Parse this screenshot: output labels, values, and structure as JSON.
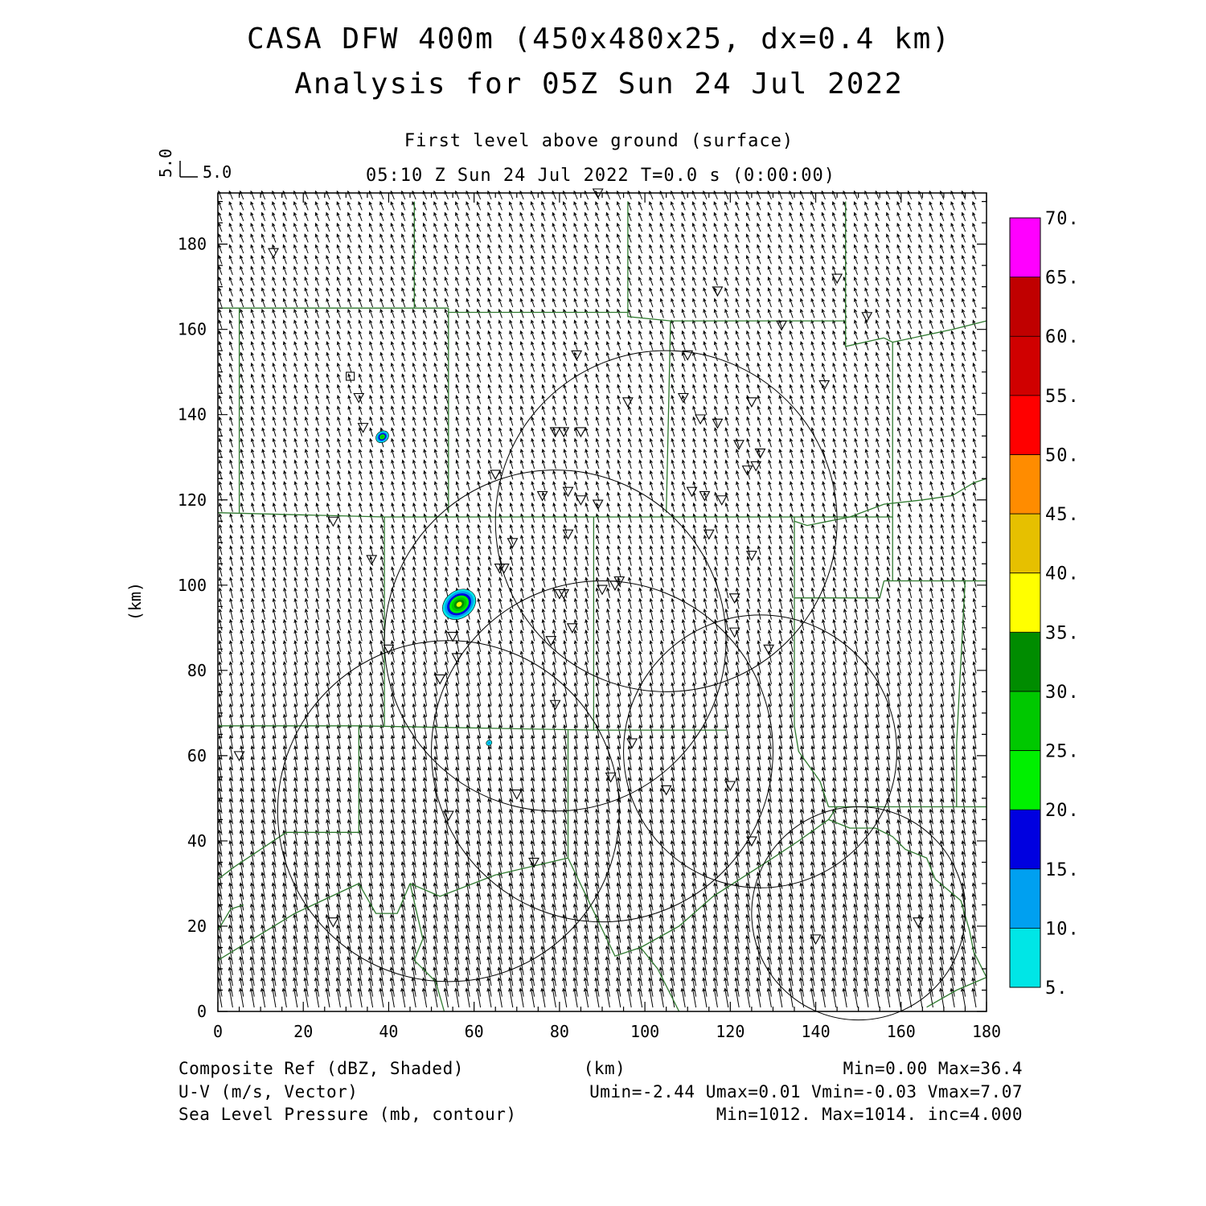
{
  "title": {
    "line1": "CASA DFW 400m (450x480x25, dx=0.4 km)",
    "line2": "Analysis for 05Z Sun 24 Jul 2022"
  },
  "subtitle": {
    "level": "First level above ground (surface)",
    "time": "05:10 Z Sun 24 Jul 2022   T=0.0 s (0:00:00)"
  },
  "vector_key": {
    "vertical": "5.0",
    "horizontal": "5.0"
  },
  "axes": {
    "ylabel": "(km)",
    "xlabel": "(km)",
    "x_ticks": [
      "0",
      "20",
      "40",
      "60",
      "80",
      "100",
      "120",
      "140",
      "160",
      "180"
    ],
    "y_ticks": [
      "0",
      "20",
      "40",
      "60",
      "80",
      "100",
      "120",
      "140",
      "160",
      "180"
    ]
  },
  "colorbar": {
    "labels": [
      "5.",
      "10.",
      "15.",
      "20.",
      "25.",
      "30.",
      "35.",
      "40.",
      "45.",
      "50.",
      "55.",
      "60.",
      "65.",
      "70."
    ],
    "colors": [
      "#00e6e6",
      "#00a0f0",
      "#0000e0",
      "#00f000",
      "#00c800",
      "#008c00",
      "#ffff00",
      "#e6c000",
      "#ff8c00",
      "#ff0000",
      "#d00000",
      "#c00000",
      "#ff00ff"
    ]
  },
  "footer": {
    "field1_name": "Composite Ref (dBZ, Shaded)",
    "field1_stats": "Min=0.00 Max=36.4",
    "field2_name": "U-V (m/s, Vector)",
    "field2_stats": "Umin=-2.44 Umax=0.01 Vmin=-0.03 Vmax=7.07",
    "field3_name": "Sea Level Pressure (mb, contour)",
    "field3_stats": "Min=1012. Max=1014. inc=4.000",
    "x_unit": "(km)"
  },
  "colors": {
    "boundary": "#2f7a2f",
    "axes": "#000000"
  },
  "radar_sites": [
    {
      "x": 105,
      "y": 115,
      "r": 40
    },
    {
      "x": 79,
      "y": 87,
      "r": 40
    },
    {
      "x": 90,
      "y": 61,
      "r": 40
    },
    {
      "x": 127,
      "y": 61,
      "r": 32
    },
    {
      "x": 54,
      "y": 47,
      "r": 40
    },
    {
      "x": 150,
      "y": 23,
      "r": 25
    }
  ],
  "stations": [
    [
      13,
      178
    ],
    [
      27,
      115
    ],
    [
      33,
      144
    ],
    [
      34,
      137
    ],
    [
      36,
      106
    ],
    [
      40,
      85
    ],
    [
      52,
      78
    ],
    [
      54,
      46
    ],
    [
      55,
      88
    ],
    [
      56,
      83
    ],
    [
      65,
      126
    ],
    [
      66,
      104
    ],
    [
      67,
      104
    ],
    [
      69,
      110
    ],
    [
      70,
      51
    ],
    [
      74,
      35
    ],
    [
      76,
      121
    ],
    [
      79,
      136
    ],
    [
      81,
      136
    ],
    [
      80,
      98
    ],
    [
      81,
      98
    ],
    [
      82,
      122
    ],
    [
      82,
      112
    ],
    [
      83,
      90
    ],
    [
      78,
      87
    ],
    [
      79,
      72
    ],
    [
      84,
      154
    ],
    [
      85,
      120
    ],
    [
      85,
      136
    ],
    [
      89,
      119
    ],
    [
      90,
      99
    ],
    [
      93,
      100
    ],
    [
      94,
      101
    ],
    [
      97,
      63
    ],
    [
      92,
      55
    ],
    [
      96,
      143
    ],
    [
      105,
      52
    ],
    [
      109,
      144
    ],
    [
      110,
      154
    ],
    [
      111,
      122
    ],
    [
      113,
      139
    ],
    [
      114,
      121
    ],
    [
      115,
      112
    ],
    [
      117,
      169
    ],
    [
      117,
      138
    ],
    [
      118,
      120
    ],
    [
      121,
      97
    ],
    [
      120,
      53
    ],
    [
      121,
      89
    ],
    [
      122,
      133
    ],
    [
      124,
      127
    ],
    [
      125,
      107
    ],
    [
      125,
      40
    ],
    [
      125,
      143
    ],
    [
      126,
      128
    ],
    [
      127,
      131
    ],
    [
      129,
      85
    ],
    [
      132,
      161
    ],
    [
      140,
      17
    ],
    [
      142,
      147
    ],
    [
      145,
      172
    ],
    [
      152,
      163
    ],
    [
      164,
      21
    ],
    [
      27,
      21
    ],
    [
      5,
      60
    ],
    [
      89,
      192
    ]
  ],
  "square_marker": {
    "x": 31,
    "y": 149
  },
  "reflectivity_cells": [
    {
      "x": 38.5,
      "y": 134.8,
      "rx": 1.6,
      "ry": 1.3,
      "max_band": 4
    },
    {
      "x": 56.5,
      "y": 95.5,
      "rx": 4.2,
      "ry": 3.2,
      "max_band": 6
    },
    {
      "x": 63.5,
      "y": 63,
      "rx": 0.7,
      "ry": 0.6,
      "max_band": 1
    }
  ],
  "boundaries": [
    [
      [
        0,
        165
      ],
      [
        54,
        165
      ]
    ],
    [
      [
        46,
        190
      ],
      [
        46,
        165
      ]
    ],
    [
      [
        54,
        165
      ],
      [
        54,
        117
      ]
    ],
    [
      [
        5,
        165
      ],
      [
        5,
        117
      ]
    ],
    [
      [
        54,
        164
      ],
      [
        96,
        164
      ]
    ],
    [
      [
        96,
        190
      ],
      [
        96,
        163
      ],
      [
        106,
        162
      ]
    ],
    [
      [
        106,
        162
      ],
      [
        147,
        162
      ]
    ],
    [
      [
        147,
        190
      ],
      [
        147,
        156
      ],
      [
        156,
        158
      ]
    ],
    [
      [
        156,
        158
      ],
      [
        158,
        157
      ]
    ],
    [
      [
        158,
        157
      ],
      [
        158,
        116
      ],
      [
        135,
        116
      ],
      [
        135,
        97
      ]
    ],
    [
      [
        106,
        162
      ],
      [
        105,
        117
      ]
    ],
    [
      [
        0,
        117
      ],
      [
        39,
        116
      ],
      [
        105,
        116
      ],
      [
        135,
        116
      ]
    ],
    [
      [
        158,
        157
      ],
      [
        172,
        160
      ],
      [
        180,
        162
      ]
    ],
    [
      [
        135,
        115
      ],
      [
        138,
        114
      ],
      [
        148,
        116
      ],
      [
        156,
        119
      ],
      [
        165,
        120
      ],
      [
        172,
        121
      ],
      [
        177,
        124
      ],
      [
        180,
        125
      ]
    ],
    [
      [
        39,
        116
      ],
      [
        39,
        67
      ]
    ],
    [
      [
        88,
        116
      ],
      [
        88,
        66
      ]
    ],
    [
      [
        0,
        67
      ],
      [
        33,
        67
      ],
      [
        88,
        66
      ],
      [
        119,
        66
      ]
    ],
    [
      [
        135,
        97
      ],
      [
        148,
        97
      ]
    ],
    [
      [
        148,
        97
      ],
      [
        155,
        97
      ],
      [
        156,
        101
      ]
    ],
    [
      [
        156,
        101
      ],
      [
        170,
        101
      ],
      [
        175,
        101
      ],
      [
        180,
        101
      ]
    ],
    [
      [
        158,
        101
      ],
      [
        158,
        116
      ]
    ],
    [
      [
        135,
        97
      ],
      [
        135,
        67
      ],
      [
        136,
        61
      ],
      [
        141,
        54
      ],
      [
        143,
        48
      ]
    ],
    [
      [
        143,
        48
      ],
      [
        162,
        48
      ],
      [
        180,
        48
      ]
    ],
    [
      [
        175,
        101
      ],
      [
        173,
        63
      ],
      [
        173,
        48
      ]
    ],
    [
      [
        33,
        67
      ],
      [
        33,
        42
      ],
      [
        16,
        42
      ],
      [
        4,
        34
      ]
    ],
    [
      [
        4,
        34
      ],
      [
        0,
        31
      ]
    ],
    [
      [
        0,
        12
      ],
      [
        18,
        23
      ],
      [
        33,
        30
      ]
    ],
    [
      [
        33,
        30
      ],
      [
        37,
        23
      ],
      [
        42,
        23
      ],
      [
        45,
        30
      ]
    ],
    [
      [
        45,
        30
      ],
      [
        52,
        27
      ],
      [
        65,
        32
      ],
      [
        82,
        36
      ]
    ],
    [
      [
        82,
        66
      ],
      [
        82,
        36
      ]
    ],
    [
      [
        82,
        36
      ],
      [
        93,
        13
      ],
      [
        99,
        15
      ]
    ],
    [
      [
        99,
        15
      ],
      [
        108,
        20
      ],
      [
        116,
        27
      ],
      [
        130,
        36
      ],
      [
        136,
        40
      ],
      [
        143,
        45
      ]
    ],
    [
      [
        143,
        45
      ],
      [
        148,
        43
      ],
      [
        154,
        43
      ]
    ],
    [
      [
        154,
        43
      ],
      [
        158,
        41
      ],
      [
        161,
        38
      ],
      [
        166,
        36
      ],
      [
        168,
        31
      ],
      [
        174,
        26
      ]
    ],
    [
      [
        174,
        26
      ],
      [
        176,
        19
      ],
      [
        177,
        14
      ],
      [
        180,
        8
      ]
    ],
    [
      [
        45,
        30
      ],
      [
        48,
        17
      ],
      [
        46,
        12
      ],
      [
        51,
        7
      ],
      [
        53,
        0
      ]
    ],
    [
      [
        99,
        15
      ],
      [
        103,
        10
      ],
      [
        108,
        0
      ]
    ],
    [
      [
        166,
        1
      ],
      [
        173,
        5
      ],
      [
        180,
        8
      ]
    ],
    [
      [
        0,
        19
      ],
      [
        3,
        24
      ],
      [
        6,
        25
      ]
    ],
    [
      [
        143,
        45
      ],
      [
        145,
        48
      ]
    ]
  ]
}
